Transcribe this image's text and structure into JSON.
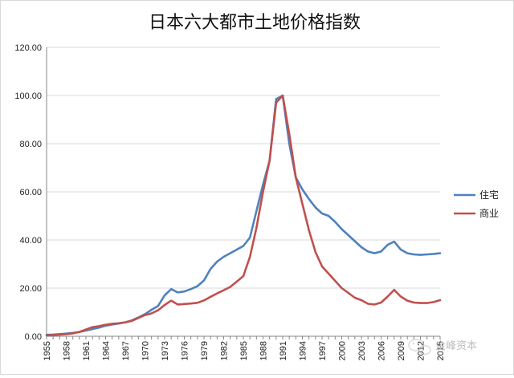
{
  "chart_data": {
    "type": "line",
    "title": "日本六大都市土地价格指数",
    "xlabel": "",
    "ylabel": "",
    "ylim": [
      0,
      120
    ],
    "yticks": [
      "0.00",
      "20.00",
      "40.00",
      "60.00",
      "80.00",
      "100.00",
      "120.00"
    ],
    "xlim": [
      1955,
      2015
    ],
    "xticks": [
      "1955",
      "1958",
      "1961",
      "1964",
      "1967",
      "1970",
      "1973",
      "1976",
      "1979",
      "1982",
      "1985",
      "1988",
      "1991",
      "1994",
      "1997",
      "2000",
      "2003",
      "2006",
      "2009",
      "2012",
      "2015"
    ],
    "grid": "horizontal",
    "legend_position": "right",
    "x": [
      1955,
      1956,
      1957,
      1958,
      1959,
      1960,
      1961,
      1962,
      1963,
      1964,
      1965,
      1966,
      1967,
      1968,
      1969,
      1970,
      1971,
      1972,
      1973,
      1974,
      1975,
      1976,
      1977,
      1978,
      1979,
      1980,
      1981,
      1982,
      1983,
      1984,
      1985,
      1986,
      1987,
      1988,
      1989,
      1990,
      1991,
      1992,
      1993,
      1994,
      1995,
      1996,
      1997,
      1998,
      1999,
      2000,
      2001,
      2002,
      2003,
      2004,
      2005,
      2006,
      2007,
      2008,
      2009,
      2010,
      2011,
      2012,
      2013,
      2014,
      2015
    ],
    "series": [
      {
        "name": "住宅",
        "color": "#4f81bd",
        "values": [
          0.6,
          0.7,
          0.9,
          1.1,
          1.4,
          1.8,
          2.4,
          3.0,
          3.6,
          4.4,
          4.9,
          5.3,
          5.8,
          6.6,
          7.8,
          9.2,
          11.0,
          12.6,
          17.0,
          19.6,
          18.2,
          18.6,
          19.6,
          20.8,
          23.2,
          28.0,
          31.0,
          33.0,
          34.5,
          36.0,
          37.5,
          41.0,
          52.0,
          63.0,
          73.0,
          98.5,
          100.0,
          80.0,
          66.0,
          61.0,
          57.0,
          53.5,
          51.0,
          50.0,
          47.5,
          44.5,
          42.0,
          39.5,
          37.0,
          35.2,
          34.5,
          35.2,
          38.0,
          39.3,
          36.0,
          34.5,
          34.0,
          33.8,
          34.0,
          34.2,
          34.5
        ]
      },
      {
        "name": "商业",
        "color": "#c0504d",
        "values": [
          0.4,
          0.5,
          0.7,
          0.9,
          1.2,
          1.8,
          2.8,
          3.8,
          4.2,
          4.8,
          5.2,
          5.4,
          5.8,
          6.4,
          7.6,
          8.8,
          9.5,
          10.8,
          13.0,
          14.8,
          13.2,
          13.4,
          13.6,
          13.9,
          14.9,
          16.4,
          17.8,
          19.1,
          20.5,
          22.7,
          25.0,
          33.0,
          45.0,
          60.0,
          73.0,
          97.0,
          100.0,
          84.0,
          66.0,
          55.0,
          44.0,
          35.0,
          29.0,
          26.0,
          23.0,
          20.0,
          18.0,
          16.0,
          15.0,
          13.5,
          13.2,
          14.0,
          16.5,
          19.3,
          16.5,
          14.8,
          14.0,
          13.8,
          13.8,
          14.2,
          15.0
        ]
      }
    ]
  },
  "watermark": {
    "text": "金峰资本"
  }
}
